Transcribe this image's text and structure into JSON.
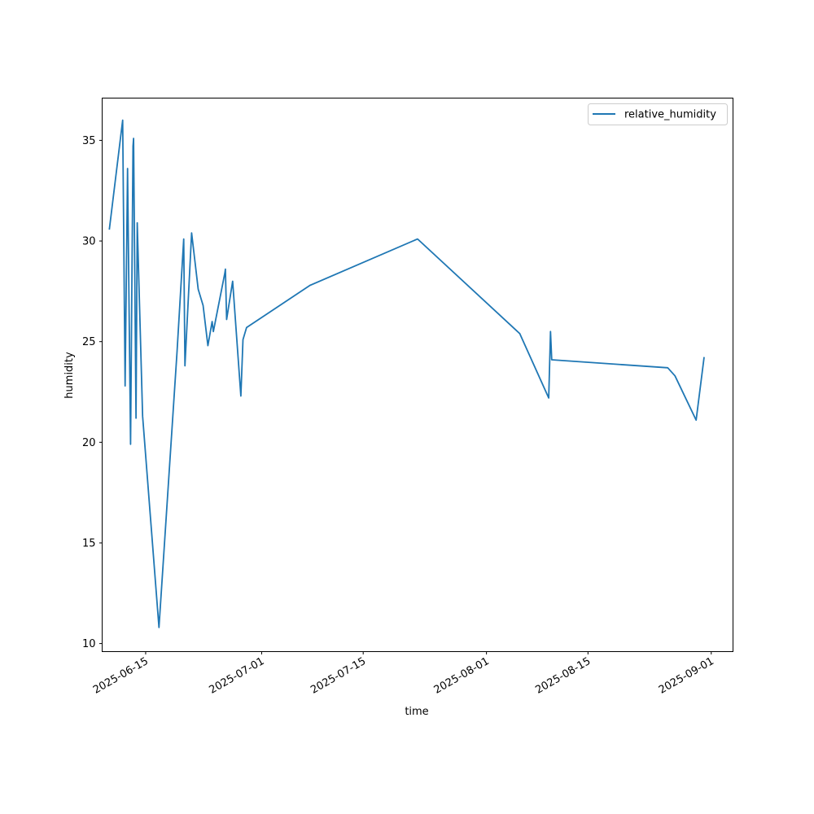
{
  "chart_data": {
    "type": "line",
    "xlabel": "time",
    "ylabel": "humidity",
    "x_is_date": true,
    "xlim": [
      "2025-06-09",
      "2025-09-04"
    ],
    "ylim": [
      9.6,
      37.1
    ],
    "y_ticks": [
      10,
      15,
      20,
      25,
      30,
      35
    ],
    "x_ticks": [
      "2025-06-15",
      "2025-07-01",
      "2025-07-15",
      "2025-08-01",
      "2025-08-15",
      "2025-09-01"
    ],
    "grid": false,
    "legend_position": "top-right",
    "colors": {
      "series": "#1f77b4",
      "axes": "#000000",
      "background": "#ffffff"
    },
    "series": [
      {
        "name": "relative_humidity",
        "color": "#1f77b4",
        "points": [
          [
            "2025-06-10T00:00",
            30.6
          ],
          [
            "2025-06-11T20:00",
            36.0
          ],
          [
            "2025-06-12T04:00",
            22.8
          ],
          [
            "2025-06-12T12:00",
            33.6
          ],
          [
            "2025-06-12T22:00",
            19.9
          ],
          [
            "2025-06-13T06:00",
            34.7
          ],
          [
            "2025-06-13T08:00",
            35.1
          ],
          [
            "2025-06-13T16:00",
            21.2
          ],
          [
            "2025-06-13T20:00",
            30.9
          ],
          [
            "2025-06-14T14:00",
            21.3
          ],
          [
            "2025-06-16T20:00",
            10.8
          ],
          [
            "2025-06-19T08:00",
            24.5
          ],
          [
            "2025-06-20T06:00",
            30.1
          ],
          [
            "2025-06-20T10:00",
            23.8
          ],
          [
            "2025-06-21T08:00",
            30.4
          ],
          [
            "2025-06-22T06:00",
            27.6
          ],
          [
            "2025-06-22T22:00",
            26.8
          ],
          [
            "2025-06-23T14:00",
            24.8
          ],
          [
            "2025-06-24T04:00",
            26.0
          ],
          [
            "2025-06-24T08:00",
            25.5
          ],
          [
            "2025-06-25T22:00",
            28.4
          ],
          [
            "2025-06-26T00:00",
            28.6
          ],
          [
            "2025-06-26T04:00",
            26.1
          ],
          [
            "2025-06-27T00:00",
            28.0
          ],
          [
            "2025-06-28T03:00",
            22.3
          ],
          [
            "2025-06-28T10:00",
            25.1
          ],
          [
            "2025-06-28T22:00",
            25.7
          ],
          [
            "2025-07-07T16:00",
            27.8
          ],
          [
            "2025-07-22T12:00",
            30.1
          ],
          [
            "2025-08-05T14:00",
            25.4
          ],
          [
            "2025-08-09T14:00",
            22.2
          ],
          [
            "2025-08-09T20:00",
            25.5
          ],
          [
            "2025-08-10T00:00",
            24.1
          ],
          [
            "2025-08-26T00:00",
            23.7
          ],
          [
            "2025-08-27T00:00",
            23.3
          ],
          [
            "2025-08-29T22:00",
            21.1
          ],
          [
            "2025-08-31T00:00",
            24.2
          ]
        ]
      }
    ]
  }
}
